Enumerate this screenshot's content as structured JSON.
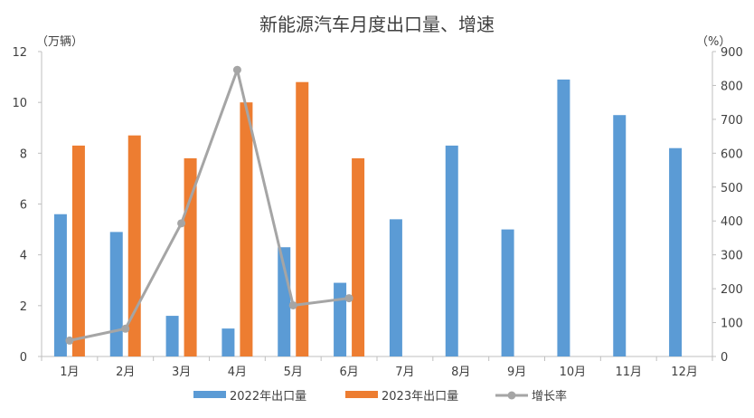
{
  "chart_data": {
    "type": "bar+line",
    "title": "新能源汽车月度出口量、增速",
    "categories": [
      "1月",
      "2月",
      "3月",
      "4月",
      "5月",
      "6月",
      "7月",
      "8月",
      "9月",
      "10月",
      "11月",
      "12月"
    ],
    "y_left": {
      "unit": "（万辆）",
      "min": 0,
      "max": 12,
      "ticks": [
        0,
        2,
        4,
        6,
        8,
        10,
        12
      ]
    },
    "y_right": {
      "unit": "（%）",
      "min": 0,
      "max": 900,
      "ticks": [
        0,
        100,
        200,
        300,
        400,
        500,
        600,
        700,
        800,
        900
      ]
    },
    "series": [
      {
        "name": "2022年出口量",
        "type": "bar",
        "axis": "left",
        "color": "#5B9BD5",
        "values": [
          5.6,
          4.9,
          1.6,
          1.1,
          4.3,
          2.9,
          5.4,
          8.3,
          5.0,
          10.9,
          9.5,
          8.2
        ]
      },
      {
        "name": "2023年出口量",
        "type": "bar",
        "axis": "left",
        "color": "#ED7D31",
        "values": [
          8.3,
          8.7,
          7.8,
          10.0,
          10.8,
          7.8,
          null,
          null,
          null,
          null,
          null,
          null
        ]
      },
      {
        "name": "增长率",
        "type": "line",
        "axis": "right",
        "color": "#A5A5A5",
        "values": [
          47,
          82,
          393,
          846,
          151,
          172,
          null,
          null,
          null,
          null,
          null,
          null
        ]
      }
    ],
    "legend_position": "bottom",
    "grid": false
  }
}
